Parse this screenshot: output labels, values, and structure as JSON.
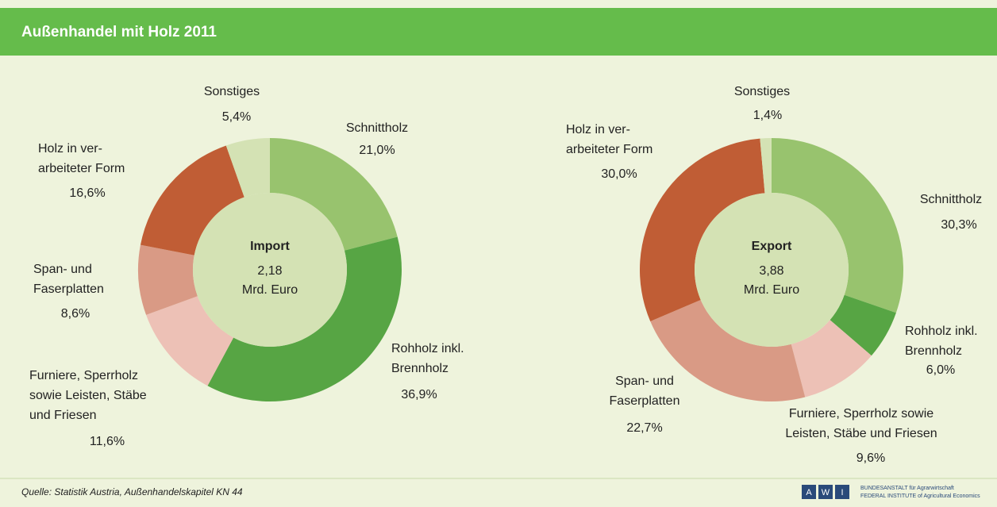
{
  "header": {
    "title": "Außenhandel mit Holz 2011"
  },
  "chart_data": [
    {
      "type": "donut",
      "center_title": "Import",
      "total": {
        "value": 2.18,
        "label": "2,18"
      },
      "unit": "Mrd. Euro",
      "categories": [
        [
          "Schnittholz"
        ],
        [
          "Rohholz inkl.",
          "Brennholz"
        ],
        [
          "Furniere, Sperrholz",
          "sowie Leisten, Stäbe",
          "und Friesen"
        ],
        [
          "Span- und",
          "Faserplatten"
        ],
        [
          "Holz in ver-",
          "arbeiteter Form"
        ],
        [
          "Sonstiges"
        ]
      ],
      "values": [
        21.0,
        36.9,
        11.6,
        8.6,
        16.6,
        5.4
      ],
      "value_labels": [
        "21,0%",
        "36,9%",
        "11,6%",
        "8,6%",
        "16,6%",
        "5,4%"
      ],
      "colors": [
        "#98c36e",
        "#57a544",
        "#edc1b6",
        "#d99a85",
        "#c05d35",
        "#d4e2b4"
      ]
    },
    {
      "type": "donut",
      "center_title": "Export",
      "total": {
        "value": 3.88,
        "label": "3,88"
      },
      "unit": "Mrd. Euro",
      "categories": [
        [
          "Schnittholz"
        ],
        [
          "Rohholz inkl.",
          "Brennholz"
        ],
        [
          "Furniere, Sperrholz sowie",
          "Leisten, Stäbe und Friesen"
        ],
        [
          "Span- und",
          "Faserplatten"
        ],
        [
          "Holz in ver-",
          "arbeiteter Form"
        ],
        [
          "Sonstiges"
        ]
      ],
      "values": [
        30.3,
        6.0,
        9.6,
        22.7,
        30.0,
        1.4
      ],
      "value_labels": [
        "30,3%",
        "6,0%",
        "9,6%",
        "22,7%",
        "30,0%",
        "1,4%"
      ],
      "colors": [
        "#98c36e",
        "#57a544",
        "#edc1b6",
        "#d99a85",
        "#c05d35",
        "#d4e2b4"
      ]
    }
  ],
  "footer": {
    "source": "Quelle: Statistik Austria, Außenhandelskapitel KN 44",
    "logo_letters": [
      "A",
      "W",
      "I"
    ],
    "institute": [
      "BUNDESANSTALT für Agrarwirtschaft",
      "FEDERAL INSTITUTE of Agricultural Economics"
    ]
  }
}
